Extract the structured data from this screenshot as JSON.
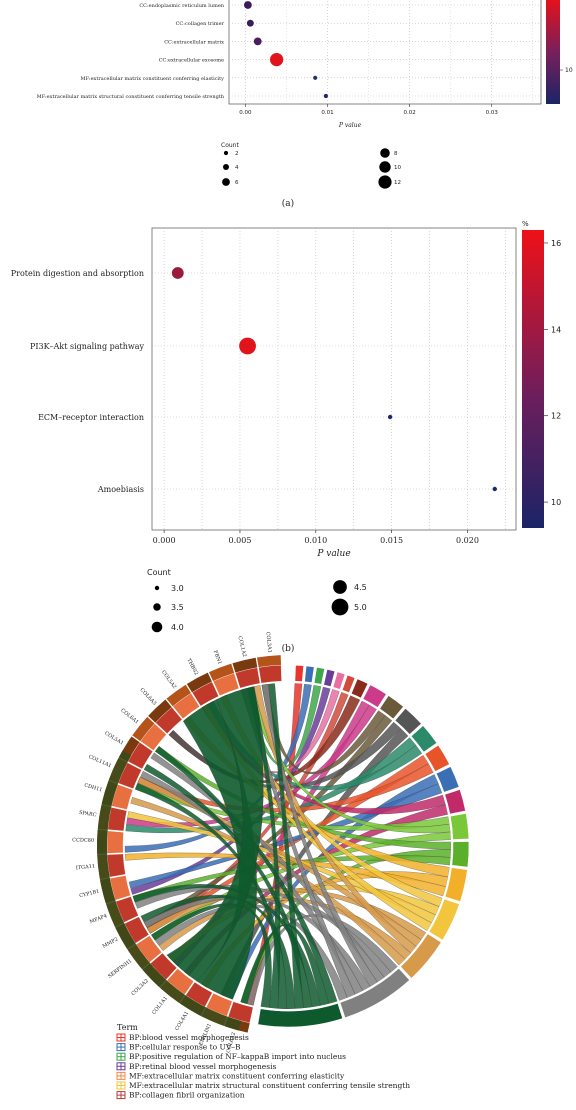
{
  "panel_a": {
    "caption": "(a)",
    "xlabel_prefix": "",
    "xlabel": "P value",
    "legend": {
      "title": "Count",
      "entries": [
        "2",
        "4",
        "6",
        "8",
        "10",
        "12"
      ]
    },
    "colorbar": {
      "ticks": [
        "10"
      ]
    }
  },
  "panel_b": {
    "caption": "(b)",
    "xlabel": "P value",
    "colorbar": {
      "title": "%",
      "ticks": [
        "16",
        "14",
        "12",
        "10"
      ]
    },
    "legend": {
      "title": "Count",
      "entries": [
        "3.0",
        "3.5",
        "4.0",
        "4.5",
        "5.0"
      ]
    }
  },
  "panel_c": {
    "genes": [
      "COL6A2",
      "EMILIN1",
      "COL4A1",
      "COL1A1",
      "COL3A2",
      "SERPINH1",
      "MMP2",
      "MFAP4",
      "CYP1B1",
      "ITGA11",
      "CCDC80",
      "SPARC",
      "CDH11",
      "COL11A1",
      "COL5A1",
      "COL6A1",
      "COL6A3",
      "COL5A2",
      "THBS2",
      "FBN1",
      "COL1A2",
      "COL3A1"
    ],
    "legend": {
      "title": "Term",
      "entries": [
        "BP:blood vessel morphogenesis",
        "BP:cellular response to UV–B",
        "BP:positive regulation of NF–kappaB import into nucleus",
        "BP:retinal blood vessel morphogenesis",
        "MF:extracellular matrix constituent conferring elasticity",
        "MF:extracellular matrix structural constituent conferring tensile strength",
        "BP:collagen fibril organization"
      ],
      "colors": [
        "#e8342a",
        "#3a6fb5",
        "#3da84a",
        "#6a3d9a",
        "#f08a4b",
        "#f2c53d",
        "#b5413a"
      ]
    }
  },
  "chart_data": [
    {
      "type": "scatter",
      "xlabel": "P value",
      "xlim": [
        -0.002,
        0.036
      ],
      "xticks": [
        "0.00",
        "0.01",
        "0.02",
        "0.03"
      ],
      "xtick_values": [
        0.0,
        0.01,
        0.02,
        0.03
      ],
      "categories": [
        "CC:endoplasmic reticulum lumen",
        "CC:collagen trimer",
        "CC:extracellular matrix",
        "CC:extracellular exosome",
        "MF:extracellular matrix constituent conferring elasticity",
        "MF:extracellular matrix structural constituent conferring tensile strength"
      ],
      "x": [
        0.0003,
        0.0006,
        0.0015,
        0.0038,
        0.0085,
        0.0098
      ],
      "count": [
        6,
        5,
        6,
        12,
        2,
        2
      ],
      "colors": [
        "#3a1e5a",
        "#3a1e5a",
        "#4a1e5a",
        "#e0141a",
        "#20306a",
        "#1a2a6a"
      ],
      "grid": true
    },
    {
      "type": "scatter",
      "xlabel": "P value",
      "xlim": [
        -0.0008,
        0.0232
      ],
      "xticks": [
        "0.000",
        "0.005",
        "0.010",
        "0.015",
        "0.020"
      ],
      "xtick_values": [
        0.0,
        0.005,
        0.01,
        0.015,
        0.02
      ],
      "categories": [
        "Protein digestion and absorption",
        "PI3K–Akt signaling pathway",
        "ECM–receptor interaction",
        "Amoebiasis"
      ],
      "x": [
        0.0009,
        0.0055,
        0.0149,
        0.0218
      ],
      "count": [
        4.2,
        5.0,
        3.0,
        3.0
      ],
      "percent": [
        13.5,
        16.0,
        9.7,
        9.7
      ],
      "colors": [
        "#9a1a3a",
        "#e0141a",
        "#1a2a6a",
        "#1a2a6a"
      ],
      "colorbar_range": [
        9.4,
        16.3
      ],
      "grid": true
    }
  ]
}
